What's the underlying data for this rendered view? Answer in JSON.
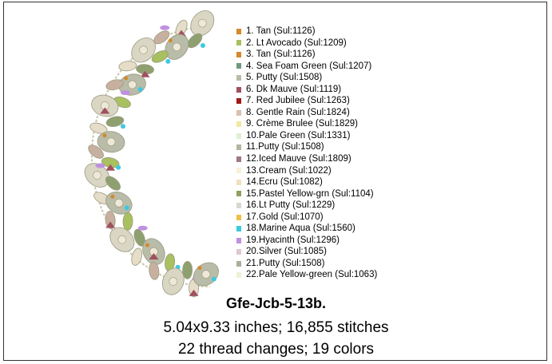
{
  "threads": [
    {
      "label": "1.  Tan (Sul:1126)",
      "color": "#d4892a"
    },
    {
      "label": "2.  Lt Avocado (Sul:1209)",
      "color": "#a8c060"
    },
    {
      "label": "3.  Tan (Sul:1126)",
      "color": "#d4892a"
    },
    {
      "label": "4.  Sea Foam Green (Sul:1207)",
      "color": "#6f9a80"
    },
    {
      "label": "5.  Putty (Sul:1508)",
      "color": "#b8bca8"
    },
    {
      "label": "6.  Dk Mauve (Sul:1119)",
      "color": "#a05060"
    },
    {
      "label": "7.  Red Jubilee (Sul:1263)",
      "color": "#a01818"
    },
    {
      "label": "8.  Gentle Rain (Sul:1824)",
      "color": "#d8c0b0"
    },
    {
      "label": "9.  Crème Brulee (Sul:1829)",
      "color": "#f0e8a0"
    },
    {
      "label": "10.Pale Green (Sul:1331)",
      "color": "#e0f0d0"
    },
    {
      "label": "11.Putty (Sul:1508)",
      "color": "#b0b8a0"
    },
    {
      "label": "12.Iced Mauve (Sul:1809)",
      "color": "#a07880"
    },
    {
      "label": "13.Cream (Sul:1022)",
      "color": "#f8f0d8"
    },
    {
      "label": "14.Ecru (Sul:1082)",
      "color": "#f0e0c0"
    },
    {
      "label": "15.Pastel Yellow-grn (Sul:1104)",
      "color": "#90a060"
    },
    {
      "label": "16.Lt Putty (Sul:1229)",
      "color": "#d8d8d0"
    },
    {
      "label": "17.Gold (Sul:1070)",
      "color": "#f0c040"
    },
    {
      "label": "18.Marine Aqua (Sul:1560)",
      "color": "#40c8e0"
    },
    {
      "label": "19.Hyacinth (Sul:1296)",
      "color": "#c090e0"
    },
    {
      "label": "20.Silver (Sul:1085)",
      "color": "#e0c8d0"
    },
    {
      "label": "21.Putty (Sul:1508)",
      "color": "#a8b098"
    },
    {
      "label": "22.Pale Yellow-green (Sul:1063)",
      "color": "#f0f0d8"
    }
  ],
  "design": {
    "name": "Gfe-Jcb-5-13b.",
    "size": "5.04x9.33 inches; 16,855 stitches",
    "changes": "22 thread changes; 19 colors"
  }
}
